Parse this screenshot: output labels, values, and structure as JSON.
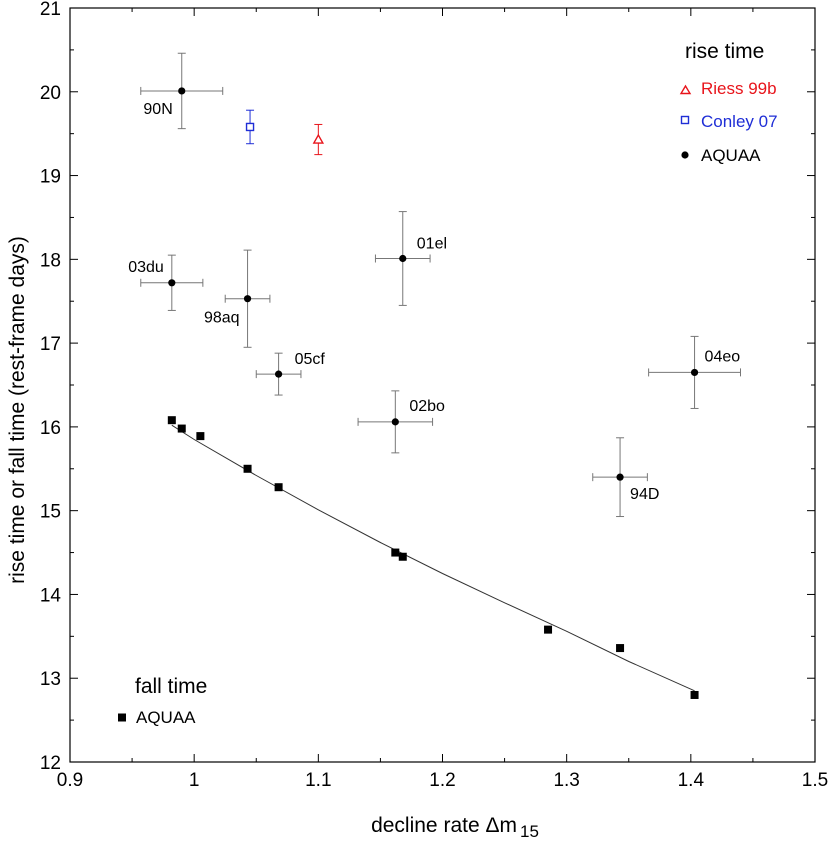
{
  "chart_data": {
    "type": "scatter",
    "title": "",
    "xlabel": "decline rate Δm",
    "xlabel_subscript": "15",
    "ylabel": "rise time or fall time (rest-frame days)",
    "xlim": [
      0.9,
      1.5
    ],
    "ylim": [
      12,
      21
    ],
    "x_ticks": [
      "0.9",
      "1",
      "1.1",
      "1.2",
      "1.3",
      "1.4",
      "1.5"
    ],
    "y_ticks": [
      "12",
      "13",
      "14",
      "15",
      "16",
      "17",
      "18",
      "19",
      "20",
      "21"
    ],
    "legend_rise": {
      "title": "rise time",
      "entries": [
        {
          "label": "Riess 99b",
          "color": "#e8141b",
          "marker": "triangle-open"
        },
        {
          "label": "Conley 07",
          "color": "#1f2ed6",
          "marker": "square-open"
        },
        {
          "label": "AQUAA",
          "color": "#000000",
          "marker": "circle-filled"
        }
      ]
    },
    "legend_fall": {
      "title": "fall time",
      "entries": [
        {
          "label": "AQUAA",
          "color": "#000000",
          "marker": "square-filled"
        }
      ]
    },
    "series": [
      {
        "name": "Riess 99b",
        "color": "#e8141b",
        "points": [
          {
            "x": 1.1,
            "y": 19.43,
            "yerr": 0.18
          }
        ]
      },
      {
        "name": "Conley 07",
        "color": "#1f2ed6",
        "points": [
          {
            "x": 1.045,
            "y": 19.58,
            "yerr": 0.2
          }
        ]
      },
      {
        "name": "AQUAA rise time",
        "color": "#000000",
        "points": [
          {
            "label": "90N",
            "x": 0.99,
            "y": 20.01,
            "xerr": 0.033,
            "yerr": 0.45
          },
          {
            "label": "03du",
            "x": 0.982,
            "y": 17.72,
            "xerr": 0.025,
            "yerr": 0.33
          },
          {
            "label": "98aq",
            "x": 1.043,
            "y": 17.53,
            "xerr": 0.018,
            "yerr": 0.58
          },
          {
            "label": "05cf",
            "x": 1.068,
            "y": 16.63,
            "xerr": 0.018,
            "yerr": 0.25
          },
          {
            "label": "01el",
            "x": 1.168,
            "y": 18.01,
            "xerr": 0.022,
            "yerr": 0.56
          },
          {
            "label": "02bo",
            "x": 1.162,
            "y": 16.06,
            "xerr": 0.03,
            "yerr": 0.37
          },
          {
            "label": "94D",
            "x": 1.343,
            "y": 15.4,
            "xerr": 0.022,
            "yerr": 0.47
          },
          {
            "label": "04eo",
            "x": 1.403,
            "y": 16.65,
            "xerr": 0.037,
            "yerr": 0.43
          }
        ]
      },
      {
        "name": "AQUAA fall time",
        "color": "#000000",
        "points": [
          {
            "x": 0.982,
            "y": 16.08
          },
          {
            "x": 0.99,
            "y": 15.98
          },
          {
            "x": 1.005,
            "y": 15.89
          },
          {
            "x": 1.043,
            "y": 15.5
          },
          {
            "x": 1.068,
            "y": 15.28
          },
          {
            "x": 1.162,
            "y": 14.5
          },
          {
            "x": 1.168,
            "y": 14.45
          },
          {
            "x": 1.285,
            "y": 13.58
          },
          {
            "x": 1.343,
            "y": 13.36
          },
          {
            "x": 1.403,
            "y": 12.8
          }
        ]
      }
    ],
    "fit_curve": {
      "name": "fall time fit",
      "x": [
        0.982,
        1.0,
        1.05,
        1.1,
        1.15,
        1.2,
        1.25,
        1.3,
        1.35,
        1.403
      ],
      "y": [
        16.02,
        15.85,
        15.42,
        15.01,
        14.62,
        14.25,
        13.9,
        13.56,
        13.2,
        12.85
      ]
    }
  }
}
